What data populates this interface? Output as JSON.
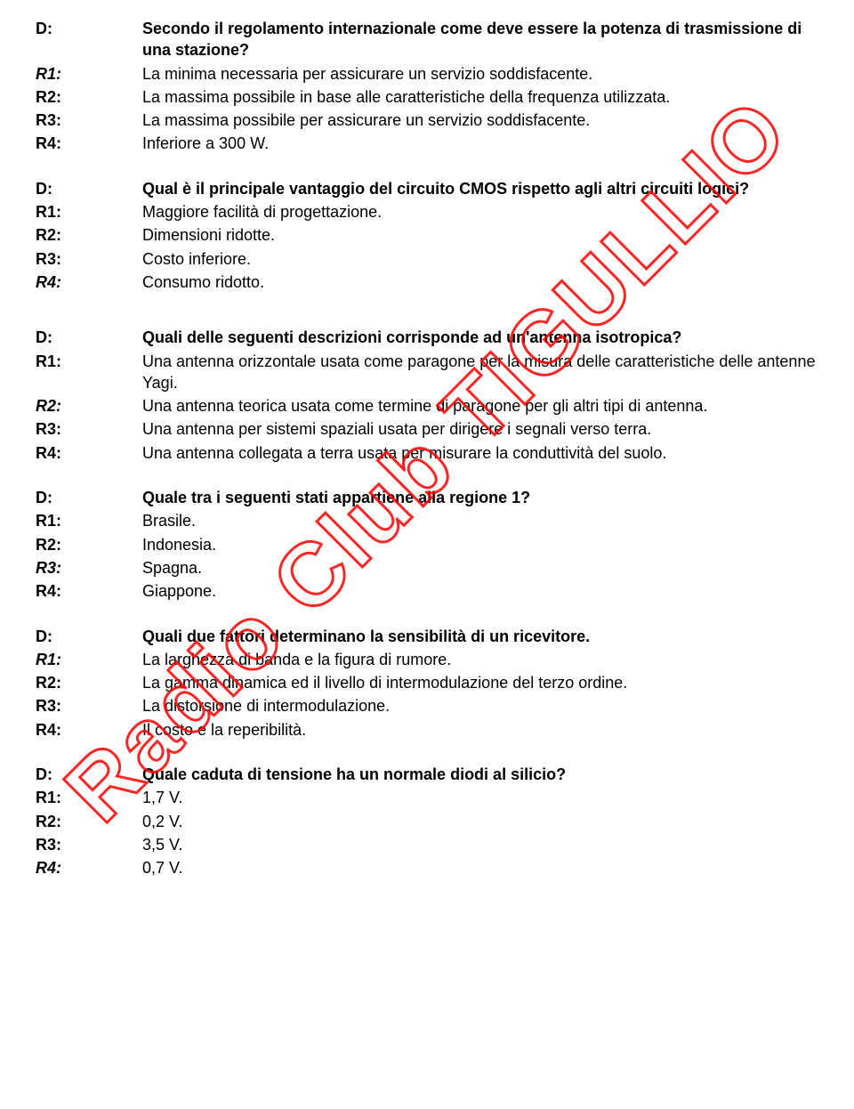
{
  "watermark": "Radio Club TIGULLIO",
  "blocks": [
    {
      "question_label": "D:",
      "question": "Secondo il regolamento internazionale come deve essere la potenza di trasmissione di una stazione?",
      "answers": [
        {
          "label": "R1:",
          "text": "La minima necessaria per assicurare un servizio soddisfacente.",
          "correct": true
        },
        {
          "label": "R2:",
          "text": "La massima possibile in base alle caratteristiche della frequenza utilizzata.",
          "correct": false
        },
        {
          "label": "R3:",
          "text": "La massima possibile per assicurare un servizio soddisfacente.",
          "correct": false
        },
        {
          "label": "R4:",
          "text": "Inferiore a 300 W.",
          "correct": false
        }
      ]
    },
    {
      "question_label": "D:",
      "question": "Qual è il principale vantaggio del circuito CMOS rispetto agli altri circuiti logici?",
      "answers": [
        {
          "label": "R1:",
          "text": "Maggiore facilità di progettazione.",
          "correct": false
        },
        {
          "label": "R2:",
          "text": "Dimensioni ridotte.",
          "correct": false
        },
        {
          "label": "R3:",
          "text": "Costo inferiore.",
          "correct": false
        },
        {
          "label": "R4:",
          "text": "Consumo ridotto.",
          "correct": true
        }
      ]
    },
    {
      "question_label": "D:",
      "question": "Quali delle seguenti descrizioni corrisponde ad un'antenna isotropica?",
      "answers": [
        {
          "label": "R1:",
          "text": "Una antenna orizzontale usata come paragone per la misura delle caratteristiche delle antenne Yagi.",
          "correct": false
        },
        {
          "label": "R2:",
          "text": "Una antenna teorica usata come termine di paragone per gli altri tipi di antenna.",
          "correct": true
        },
        {
          "label": "R3:",
          "text": "Una antenna per sistemi spaziali usata per dirigere i segnali verso terra.",
          "correct": false
        },
        {
          "label": "R4:",
          "text": "Una antenna collegata a terra usata per misurare la conduttività del suolo.",
          "correct": false
        }
      ]
    },
    {
      "question_label": "D:",
      "question": "Quale tra i seguenti stati appartiene alla regione 1?",
      "answers": [
        {
          "label": "R1:",
          "text": "Brasile.",
          "correct": false
        },
        {
          "label": "R2:",
          "text": "Indonesia.",
          "correct": false
        },
        {
          "label": "R3:",
          "text": "Spagna.",
          "correct": true
        },
        {
          "label": "R4:",
          "text": "Giappone.",
          "correct": false
        }
      ]
    },
    {
      "question_label": "D:",
      "question": "Quali due fattori determinano la sensibilità di un ricevitore.",
      "answers": [
        {
          "label": "R1:",
          "text": "La larghezza di banda e la figura di rumore.",
          "correct": true
        },
        {
          "label": "R2:",
          "text": "La gamma dinamica ed il livello di intermodulazione del terzo ordine.",
          "correct": false
        },
        {
          "label": "R3:",
          "text": "La distorsione di intermodulazione.",
          "correct": false
        },
        {
          "label": "R4:",
          "text": "Il costo e la reperibilità.",
          "correct": false
        }
      ]
    },
    {
      "question_label": "D:",
      "question": "Quale caduta di tensione ha un normale diodi al silicio?",
      "answers": [
        {
          "label": "R1:",
          "text": "1,7 V.",
          "correct": false
        },
        {
          "label": "R2:",
          "text": "0,2 V.",
          "correct": false
        },
        {
          "label": "R3:",
          "text": "3,5 V.",
          "correct": false
        },
        {
          "label": "R4:",
          "text": "0,7 V.",
          "correct": true
        }
      ]
    }
  ]
}
